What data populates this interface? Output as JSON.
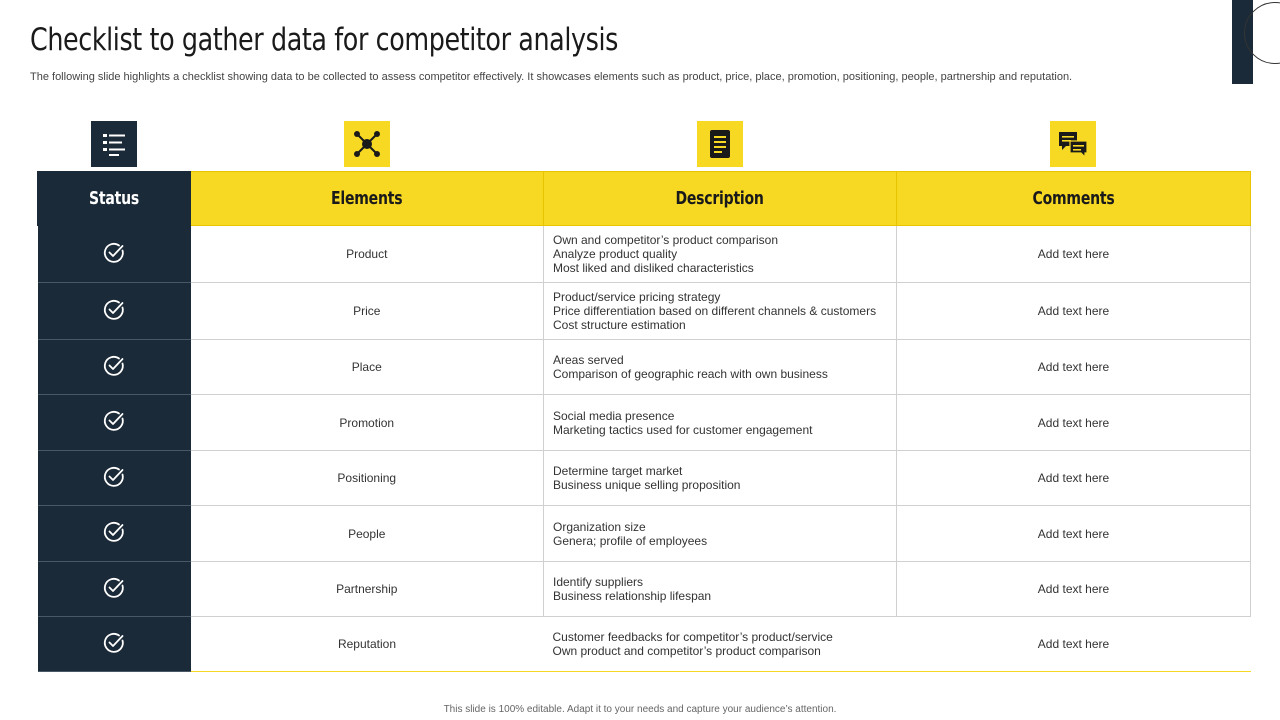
{
  "slide": {
    "title": "Checklist to gather data for competitor analysis",
    "subtitle": "The following slide highlights a checklist showing data to be collected to assess competitor effectively. It showcases elements such as product, price, place, promotion, positioning, people, partnership and reputation.",
    "footer": "This slide is 100% editable. Adapt it to your needs and capture your audience’s attention."
  },
  "icons": [
    {
      "name": "checklist-icon",
      "bg": "#1b2a38"
    },
    {
      "name": "network-icon",
      "bg": "#f7d924"
    },
    {
      "name": "document-icon",
      "bg": "#f7d924"
    },
    {
      "name": "chat-icon",
      "bg": "#f7d924"
    }
  ],
  "table": {
    "headers": {
      "status": "Status",
      "elements": "Elements",
      "description": "Description",
      "comments": "Comments"
    },
    "rows": [
      {
        "element": "Product",
        "description": [
          "Own and competitor’s product comparison",
          "Analyze  product quality",
          "Most liked and disliked characteristics"
        ],
        "comment": "Add text here"
      },
      {
        "element": "Price",
        "description": [
          "Product/service pricing strategy",
          "Price differentiation based on different channels & customers",
          "Cost structure estimation"
        ],
        "comment": "Add text here"
      },
      {
        "element": "Place",
        "description": [
          "Areas served",
          "Comparison of geographic reach with own business"
        ],
        "comment": "Add text here"
      },
      {
        "element": "Promotion",
        "description": [
          "Social media presence",
          "Marketing tactics used for customer engagement"
        ],
        "comment": "Add text here"
      },
      {
        "element": "Positioning",
        "description": [
          "Determine target market",
          "Business unique selling proposition"
        ],
        "comment": "Add text here"
      },
      {
        "element": "People",
        "description": [
          "Organization size",
          "Genera; profile of employees"
        ],
        "comment": "Add text here"
      },
      {
        "element": "Partnership",
        "description": [
          "Identify suppliers",
          "Business relationship lifespan"
        ],
        "comment": "Add text here"
      },
      {
        "element": "Reputation",
        "description": [
          "Customer feedbacks for competitor’s product/service",
          "Own product and competitor’s product comparison"
        ],
        "comment": "Add text here"
      }
    ]
  },
  "colors": {
    "navy": "#1b2a38",
    "yellow": "#f7d924"
  }
}
